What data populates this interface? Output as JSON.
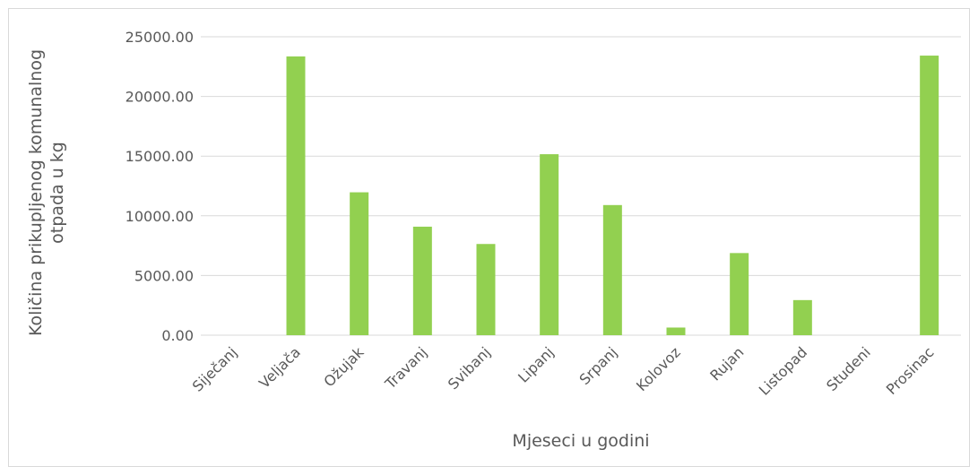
{
  "chart_data": {
    "type": "bar",
    "title": "",
    "xlabel": "Mjeseci u godini",
    "ylabel_lines": [
      "Količina prikupljenog komunalnog",
      "otpada u kg"
    ],
    "categories": [
      "Siječanj",
      "Veljača",
      "Ožujak",
      "Travanj",
      "Svibanj",
      "Lipanj",
      "Srpanj",
      "Kolovoz",
      "Rujan",
      "Listopad",
      "Studeni",
      "Prosinac"
    ],
    "values": [
      0,
      23350,
      11970,
      9090,
      7640,
      15160,
      10900,
      640,
      6880,
      2940,
      0,
      23420
    ],
    "ylim": [
      0,
      25000
    ],
    "yticks": [
      "0.00",
      "5000.00",
      "10000.00",
      "15000.00",
      "20000.00",
      "25000.00"
    ],
    "grid": true,
    "legend": "none",
    "bar_color": "#92d050",
    "grid_color": "#d9d9d9",
    "text_color": "#595959"
  }
}
